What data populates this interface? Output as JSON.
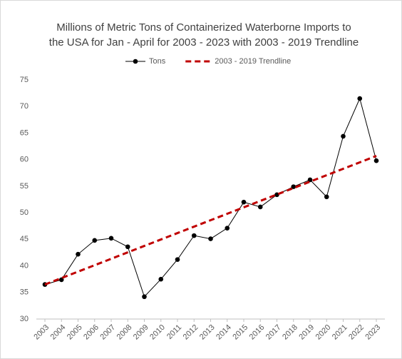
{
  "chart_data": {
    "type": "line",
    "title": [
      "Millions of Metric Tons of Containerized Waterborne Imports to",
      "the USA for Jan - April for 2003 - 2023 with 2003 - 2019 Trendline"
    ],
    "x": [
      2003,
      2004,
      2005,
      2006,
      2007,
      2008,
      2009,
      2010,
      2011,
      2012,
      2013,
      2014,
      2015,
      2016,
      2017,
      2018,
      2019,
      2020,
      2021,
      2022,
      2023
    ],
    "series": [
      {
        "name": "Tons",
        "color": "#000000",
        "markers": true,
        "dashed": false,
        "values": [
          36.5,
          37.4,
          42.2,
          44.8,
          45.2,
          43.6,
          34.2,
          37.5,
          41.2,
          45.7,
          45.1,
          47.1,
          52.0,
          51.1,
          53.4,
          54.9,
          56.2,
          53.0,
          64.4,
          71.5,
          59.8
        ]
      },
      {
        "name": "2003 - 2019 Trendline",
        "color": "#c00000",
        "markers": false,
        "dashed": true,
        "values": [
          36.5,
          37.71,
          38.92,
          40.13,
          41.34,
          42.55,
          43.76,
          44.97,
          46.18,
          47.39,
          48.6,
          49.81,
          51.02,
          52.23,
          53.44,
          54.65,
          55.86,
          57.07,
          58.28,
          59.49,
          60.7
        ]
      }
    ],
    "xlim": [
      2003,
      2023
    ],
    "xticks": [
      2003,
      2004,
      2005,
      2006,
      2007,
      2008,
      2009,
      2010,
      2011,
      2012,
      2013,
      2014,
      2015,
      2016,
      2017,
      2018,
      2019,
      2020,
      2021,
      2022,
      2023
    ],
    "ylim": [
      30,
      75
    ],
    "yticks": [
      30,
      35,
      40,
      45,
      50,
      55,
      60,
      65,
      70,
      75
    ],
    "grid": false,
    "legend": "top"
  }
}
